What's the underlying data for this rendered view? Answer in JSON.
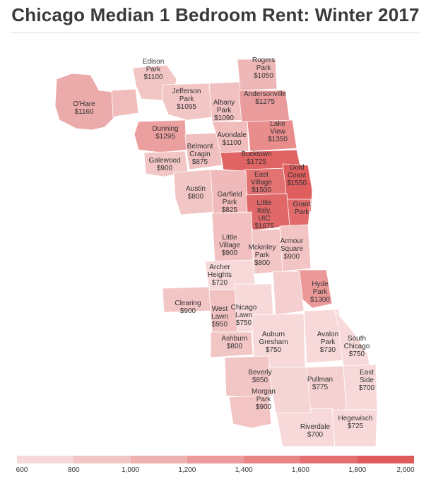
{
  "title": "Chicago Median 1 Bedroom Rent: Winter 2017",
  "legend": {
    "ticks": [
      "600",
      "800",
      "1,000",
      "1,200",
      "1,400",
      "1,600",
      "1,800",
      "2,000"
    ],
    "colors": [
      "#f7d9d9",
      "#f3c6c6",
      "#efb0b0",
      "#eb9b9b",
      "#e78585",
      "#e37070",
      "#df5a5a"
    ]
  },
  "neighborhoods": [
    {
      "id": "edison-park",
      "name": [
        "Edison",
        "Park"
      ],
      "rent": "$1100"
    },
    {
      "id": "rogers-park",
      "name": [
        "Rogers",
        "Park"
      ],
      "rent": "$1050"
    },
    {
      "id": "jefferson-park",
      "name": [
        "Jefferson",
        "Park"
      ],
      "rent": "$1095"
    },
    {
      "id": "andersonville",
      "name": [
        "Andersonville"
      ],
      "rent": "$1275"
    },
    {
      "id": "ohare",
      "name": [
        "O'Hare"
      ],
      "rent": "$1160"
    },
    {
      "id": "albany-park",
      "name": [
        "Albany",
        "Park"
      ],
      "rent": "$1090"
    },
    {
      "id": "lake-view",
      "name": [
        "Lake",
        "View"
      ],
      "rent": "$1350"
    },
    {
      "id": "dunning",
      "name": [
        "Dunning"
      ],
      "rent": "$1295"
    },
    {
      "id": "avondale",
      "name": [
        "Avondale"
      ],
      "rent": "$1100"
    },
    {
      "id": "belmont-cragin",
      "name": [
        "Belmont",
        "Cragin"
      ],
      "rent": "$875"
    },
    {
      "id": "bucktown",
      "name": [
        "Bucktown"
      ],
      "rent": "$1725"
    },
    {
      "id": "galewood",
      "name": [
        "Galewood"
      ],
      "rent": "$900"
    },
    {
      "id": "gold-coast",
      "name": [
        "Gold",
        "Coast"
      ],
      "rent": "$1550"
    },
    {
      "id": "east-village",
      "name": [
        "East",
        "Village"
      ],
      "rent": "$1500"
    },
    {
      "id": "austin",
      "name": [
        "Austin"
      ],
      "rent": "$800"
    },
    {
      "id": "garfield-park",
      "name": [
        "Garfield",
        "Park"
      ],
      "rent": "$825"
    },
    {
      "id": "grant-park",
      "name": [
        "Grant",
        "Park"
      ],
      "rent": ""
    },
    {
      "id": "little-italy-uic",
      "name": [
        "Little",
        "Italy,",
        "UIC"
      ],
      "rent": "$1675"
    },
    {
      "id": "armour-square",
      "name": [
        "Armour",
        "Square"
      ],
      "rent": "$900"
    },
    {
      "id": "little-village",
      "name": [
        "Little",
        "Village"
      ],
      "rent": "$900"
    },
    {
      "id": "mckinley-park",
      "name": [
        "Mckinley",
        "Park"
      ],
      "rent": "$800"
    },
    {
      "id": "archer-heights",
      "name": [
        "Archer",
        "Heights"
      ],
      "rent": "$720"
    },
    {
      "id": "hyde-park",
      "name": [
        "Hyde",
        "Park"
      ],
      "rent": "$1300"
    },
    {
      "id": "clearing",
      "name": [
        "Clearing"
      ],
      "rent": "$900"
    },
    {
      "id": "west-lawn",
      "name": [
        "West",
        "Lawn"
      ],
      "rent": "$950"
    },
    {
      "id": "chicago-lawn",
      "name": [
        "Chicago",
        "Lawn"
      ],
      "rent": "$750"
    },
    {
      "id": "ashburn",
      "name": [
        "Ashburn"
      ],
      "rent": "$800"
    },
    {
      "id": "auburn-gresham",
      "name": [
        "Auburn",
        "Gresham"
      ],
      "rent": "$750"
    },
    {
      "id": "avalon-park",
      "name": [
        "Avalon",
        "Park"
      ],
      "rent": "$730"
    },
    {
      "id": "south-chicago",
      "name": [
        "South",
        "Chicago"
      ],
      "rent": "$750"
    },
    {
      "id": "beverly",
      "name": [
        "Beverly"
      ],
      "rent": "$850"
    },
    {
      "id": "pullman",
      "name": [
        "Pullman"
      ],
      "rent": "$775"
    },
    {
      "id": "east-side",
      "name": [
        "East",
        "Side"
      ],
      "rent": "$700"
    },
    {
      "id": "morgan-park",
      "name": [
        "Morgan",
        "Park"
      ],
      "rent": "$900"
    },
    {
      "id": "hegewisch",
      "name": [
        "Hegewisch"
      ],
      "rent": "$725"
    },
    {
      "id": "riverdale",
      "name": [
        "Riverdale"
      ],
      "rent": "$700"
    }
  ]
}
